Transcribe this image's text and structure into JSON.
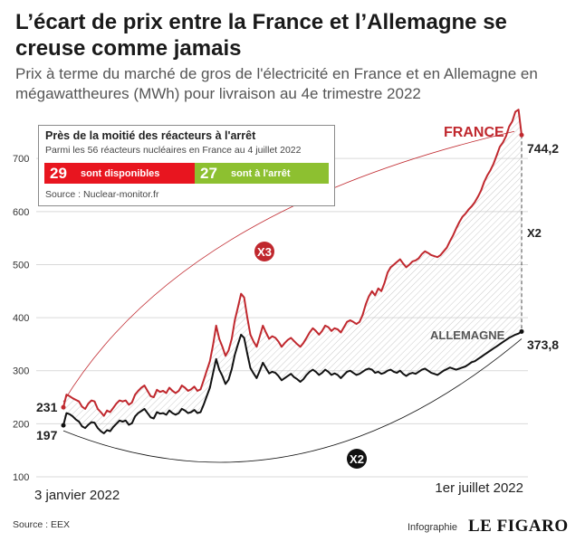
{
  "header": {
    "title": "L’écart de prix entre la France et l’Allemagne se creuse comme jamais",
    "subtitle": "Prix à terme du marché de gros de l'électricité en France et en Allemagne en mégawattheures (MWh) pour livraison au 4e trimestre 2022"
  },
  "inset": {
    "title": "Près de la moitié des réacteurs à l'arrêt",
    "subtitle": "Parmi les 56 réacteurs nucléaires en France au 4 juillet 2022",
    "available_count": "29",
    "available_label": "sont disponibles",
    "stopped_count": "27",
    "stopped_label": "sont à l'arrêt",
    "source": "Source : Nuclear-monitor.fr",
    "colors": {
      "available": "#e8151f",
      "stopped": "#8dc030"
    }
  },
  "footer": {
    "source": "Source : EEX",
    "credit": "Infographie",
    "brand": "LE FIGARO"
  },
  "chart_data": {
    "type": "line",
    "y_ticks": [
      "100",
      "200",
      "300",
      "400",
      "500",
      "600",
      "700"
    ],
    "ylim": [
      100,
      760
    ],
    "x_start_label": "3 janvier 2022",
    "x_end_label": "1er juillet 2022",
    "grid": true,
    "series": [
      {
        "name": "FRANCE",
        "color": "#c0282e",
        "start_label": "231",
        "end_label": "744,2",
        "values": [
          231,
          255,
          252,
          248,
          245,
          242,
          232,
          228,
          238,
          244,
          242,
          228,
          222,
          215,
          225,
          222,
          230,
          238,
          244,
          242,
          244,
          236,
          240,
          255,
          262,
          268,
          272,
          262,
          252,
          250,
          264,
          260,
          262,
          258,
          268,
          262,
          258,
          262,
          272,
          268,
          262,
          265,
          270,
          262,
          265,
          282,
          300,
          318,
          348,
          385,
          360,
          345,
          328,
          338,
          360,
          395,
          420,
          445,
          438,
          400,
          368,
          355,
          345,
          365,
          385,
          372,
          360,
          365,
          362,
          355,
          345,
          352,
          358,
          362,
          356,
          350,
          345,
          352,
          362,
          372,
          380,
          375,
          368,
          375,
          385,
          382,
          375,
          380,
          378,
          372,
          382,
          392,
          395,
          392,
          388,
          392,
          405,
          425,
          440,
          450,
          442,
          455,
          450,
          465,
          485,
          495,
          500,
          505,
          510,
          502,
          495,
          500,
          506,
          508,
          512,
          520,
          525,
          522,
          518,
          516,
          514,
          518,
          525,
          532,
          544,
          555,
          568,
          580,
          590,
          596,
          604,
          610,
          618,
          628,
          640,
          656,
          668,
          678,
          690,
          706,
          722,
          730,
          742,
          760,
          770,
          788,
          792,
          744.2
        ]
      },
      {
        "name": "ALLEMAGNE",
        "color": "#111111",
        "start_label": "197",
        "end_label": "373,8",
        "values": [
          197,
          220,
          218,
          214,
          208,
          204,
          195,
          192,
          198,
          203,
          202,
          192,
          186,
          182,
          188,
          186,
          194,
          200,
          206,
          204,
          206,
          198,
          201,
          214,
          220,
          224,
          228,
          220,
          212,
          210,
          222,
          219,
          220,
          217,
          225,
          220,
          217,
          220,
          228,
          225,
          220,
          222,
          226,
          220,
          222,
          236,
          252,
          268,
          295,
          322,
          302,
          290,
          275,
          283,
          303,
          330,
          350,
          368,
          362,
          332,
          305,
          295,
          286,
          300,
          315,
          305,
          295,
          298,
          296,
          290,
          282,
          286,
          290,
          294,
          288,
          284,
          279,
          284,
          292,
          298,
          302,
          298,
          292,
          296,
          302,
          298,
          292,
          295,
          292,
          286,
          292,
          298,
          300,
          296,
          292,
          294,
          298,
          302,
          304,
          302,
          296,
          298,
          294,
          296,
          300,
          302,
          298,
          296,
          300,
          294,
          290,
          294,
          296,
          294,
          298,
          302,
          304,
          300,
          296,
          294,
          292,
          296,
          300,
          303,
          306,
          304,
          302,
          304,
          306,
          308,
          312,
          316,
          318,
          322,
          326,
          330,
          334,
          338,
          342,
          346,
          350,
          354,
          358,
          362,
          365,
          368,
          370,
          373.8
        ]
      }
    ],
    "annotations": {
      "ratio_start": "X3",
      "ratio_gap": "X2",
      "ratio_bottom": "X2"
    }
  }
}
